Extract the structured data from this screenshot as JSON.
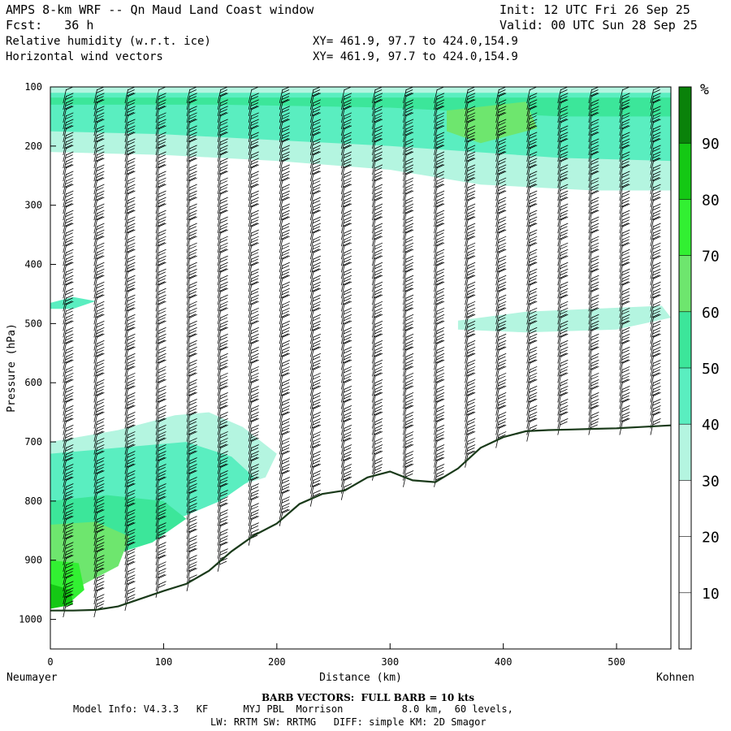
{
  "header": {
    "title": "AMPS 8-km WRF -- Qn Maud Land Coast window",
    "init": "Init: 12 UTC Fri 26 Sep 25",
    "fcst": "Fcst:   36 h",
    "valid": "Valid: 00 UTC Sun 28 Sep 25",
    "field1": "Relative humidity (w.r.t. ice)",
    "xy1": "XY= 461.9, 97.7 to 424.0,154.9",
    "field2": "Horizontal wind vectors",
    "xy2": "XY= 461.9, 97.7 to 424.0,154.9"
  },
  "chart_data": {
    "type": "heatmap",
    "title": "AMPS 8-km WRF -- Qn Maud Land Coast window",
    "xlabel": "Distance (km)",
    "ylabel": "Pressure (hPa)",
    "xlim": [
      0,
      548
    ],
    "ylim": [
      1050,
      100
    ],
    "x_ticks": [
      0,
      100,
      200,
      300,
      400,
      500
    ],
    "y_ticks": [
      100,
      200,
      300,
      400,
      500,
      600,
      700,
      800,
      900,
      1000
    ],
    "x_start_label": "Neumayer",
    "x_end_label": "Kohnen",
    "colorbar": {
      "unit": "%",
      "levels": [
        10,
        20,
        30,
        40,
        50,
        60,
        70,
        80,
        90
      ],
      "colors": [
        "#ffffff",
        "#ffffff",
        "#ffffff",
        "#b4f5e0",
        "#5aeec0",
        "#3ce69a",
        "#6ee66e",
        "#32f032",
        "#14c814",
        "#0a820a"
      ]
    },
    "terrain_pressure_hPa": [
      [
        0,
        985
      ],
      [
        20,
        985
      ],
      [
        40,
        984
      ],
      [
        60,
        978
      ],
      [
        80,
        965
      ],
      [
        100,
        952
      ],
      [
        120,
        940
      ],
      [
        140,
        918
      ],
      [
        160,
        885
      ],
      [
        180,
        858
      ],
      [
        200,
        838
      ],
      [
        220,
        805
      ],
      [
        240,
        788
      ],
      [
        260,
        782
      ],
      [
        280,
        760
      ],
      [
        300,
        750
      ],
      [
        320,
        765
      ],
      [
        340,
        768
      ],
      [
        360,
        745
      ],
      [
        380,
        710
      ],
      [
        400,
        692
      ],
      [
        420,
        682
      ],
      [
        440,
        680
      ],
      [
        460,
        679
      ],
      [
        480,
        678
      ],
      [
        500,
        677
      ],
      [
        520,
        675
      ],
      [
        548,
        672
      ]
    ],
    "barbs_label": "BARB VECTORS:  FULL BARB = 10 kts"
  },
  "footer": {
    "barb_note": "BARB VECTORS:  FULL BARB = 10 kts",
    "model_info": "Model Info: V4.3.3   KF      MYJ PBL  Morrison          8.0 km,  60 levels,",
    "physics": "LW: RRTM SW: RRTMG   DIFF: simple KM: 2D Smagor"
  }
}
